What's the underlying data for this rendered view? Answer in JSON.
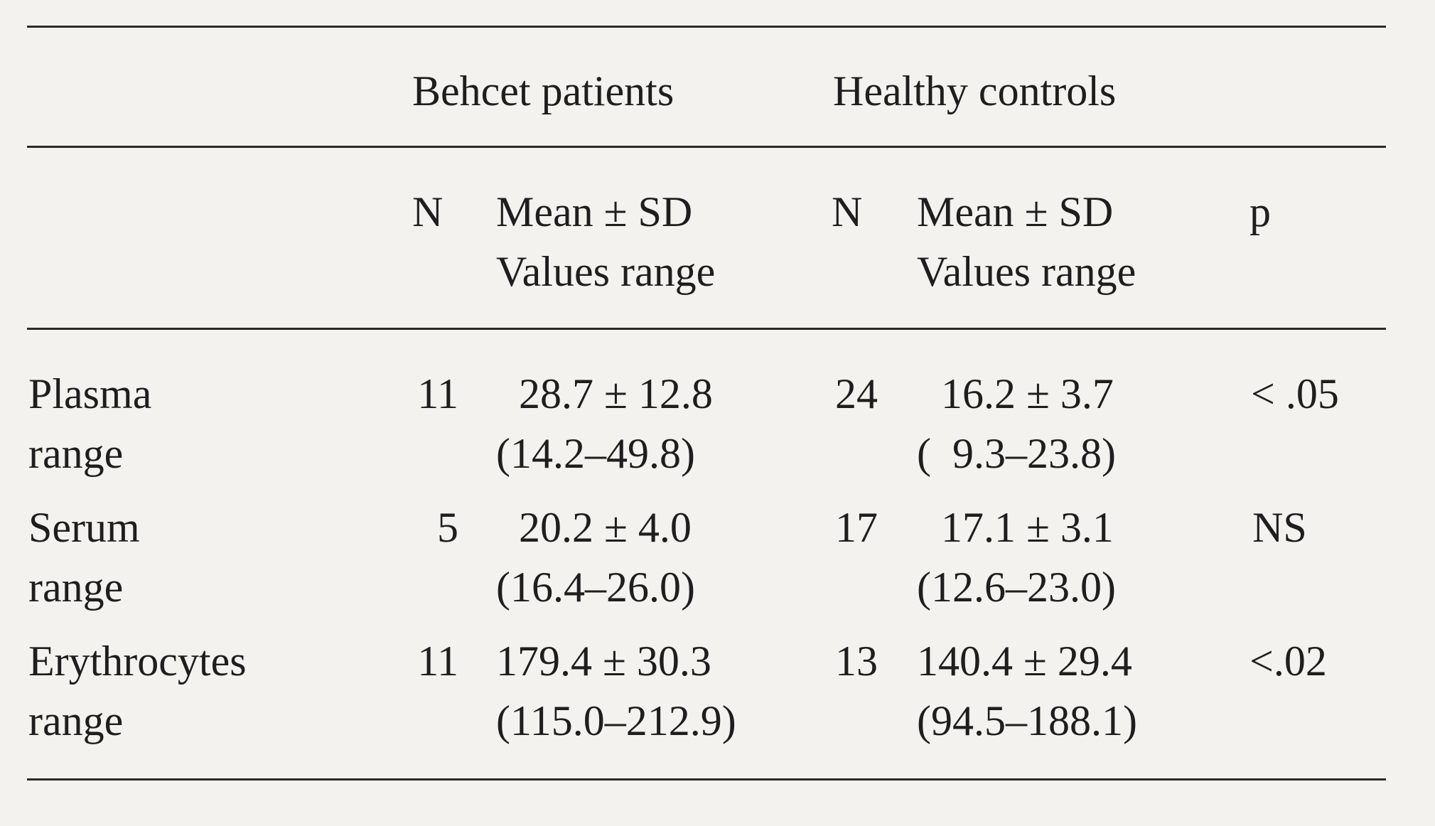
{
  "table": {
    "group_headers": {
      "patients": "Behcet patients",
      "controls": "Healthy controls"
    },
    "sub_headers": {
      "patients_n": "N",
      "patients_stat": "Mean ± SD",
      "patients_range": "Values range",
      "controls_n": "N",
      "controls_stat": "Mean ± SD",
      "controls_range": "Values range",
      "p": "p"
    },
    "rows": [
      {
        "label": "Plasma",
        "sublabel": "range",
        "p_n": "11",
        "p_mean": "28.7 ± 12.8",
        "p_range": "(14.2–49.8)",
        "c_n": "24",
        "c_mean": "16.2 ± 3.7",
        "c_range": "(  9.3–23.8)",
        "p": "< .05"
      },
      {
        "label": "Serum",
        "sublabel": "range",
        "p_n": "5",
        "p_mean": "20.2 ± 4.0",
        "p_range": "(16.4–26.0)",
        "c_n": "17",
        "c_mean": "17.1 ± 3.1",
        "c_range": "(12.6–23.0)",
        "p": "NS"
      },
      {
        "label": "Erythrocytes",
        "sublabel": "range",
        "p_n": "11",
        "p_mean": "179.4 ± 30.3",
        "p_range": "(115.0–212.9)",
        "c_n": "13",
        "c_mean": "140.4 ± 29.4",
        "c_range": "(94.5–188.1)",
        "p": "<.02"
      }
    ]
  }
}
